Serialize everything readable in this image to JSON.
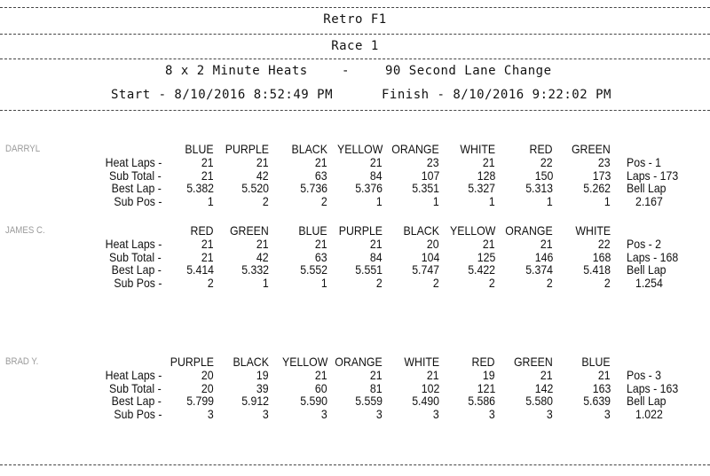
{
  "header": {
    "title": "Retro F1",
    "race": "Race 1",
    "format_left": "8 x 2 Minute Heats",
    "format_sep": "-",
    "format_right": "90 Second Lane Change",
    "start": "Start - 8/10/2016 8:52:49 PM",
    "finish": "Finish - 8/10/2016 9:22:02 PM"
  },
  "row_labels": [
    "Heat Laps -",
    "Sub Total -",
    "Best Lap -",
    "Sub Pos -"
  ],
  "racers": [
    {
      "name": "DARRYL",
      "lanes": [
        "BLUE",
        "PURPLE",
        "BLACK",
        "YELLOW",
        "ORANGE",
        "WHITE",
        "RED",
        "GREEN"
      ],
      "heat_laps": [
        "21",
        "21",
        "21",
        "21",
        "23",
        "21",
        "22",
        "23"
      ],
      "sub_total": [
        "21",
        "42",
        "63",
        "84",
        "107",
        "128",
        "150",
        "173"
      ],
      "best_lap": [
        "5.382",
        "5.520",
        "5.736",
        "5.376",
        "5.351",
        "5.327",
        "5.313",
        "5.262"
      ],
      "sub_pos": [
        "1",
        "2",
        "2",
        "1",
        "1",
        "1",
        "1",
        "1"
      ],
      "summary": [
        "Pos - 1",
        "Laps - 173",
        "Bell Lap",
        "2.167"
      ]
    },
    {
      "name": "JAMES C.",
      "lanes": [
        "RED",
        "GREEN",
        "BLUE",
        "PURPLE",
        "BLACK",
        "YELLOW",
        "ORANGE",
        "WHITE"
      ],
      "heat_laps": [
        "21",
        "21",
        "21",
        "21",
        "20",
        "21",
        "21",
        "22"
      ],
      "sub_total": [
        "21",
        "42",
        "63",
        "84",
        "104",
        "125",
        "146",
        "168"
      ],
      "best_lap": [
        "5.414",
        "5.332",
        "5.552",
        "5.551",
        "5.747",
        "5.422",
        "5.374",
        "5.418"
      ],
      "sub_pos": [
        "2",
        "1",
        "1",
        "2",
        "2",
        "2",
        "2",
        "2"
      ],
      "summary": [
        "Pos - 2",
        "Laps - 168",
        "Bell Lap",
        "1.254"
      ]
    },
    {
      "name": "BRAD Y.",
      "lanes": [
        "PURPLE",
        "BLACK",
        "YELLOW",
        "ORANGE",
        "WHITE",
        "RED",
        "GREEN",
        "BLUE"
      ],
      "heat_laps": [
        "20",
        "19",
        "21",
        "21",
        "21",
        "19",
        "21",
        "21"
      ],
      "sub_total": [
        "20",
        "39",
        "60",
        "81",
        "102",
        "121",
        "142",
        "163"
      ],
      "best_lap": [
        "5.799",
        "5.912",
        "5.590",
        "5.559",
        "5.490",
        "5.586",
        "5.580",
        "5.639"
      ],
      "sub_pos": [
        "3",
        "3",
        "3",
        "3",
        "3",
        "3",
        "3",
        "3"
      ],
      "summary": [
        "Pos - 3",
        "Laps - 163",
        "Bell Lap",
        "1.022"
      ]
    }
  ]
}
